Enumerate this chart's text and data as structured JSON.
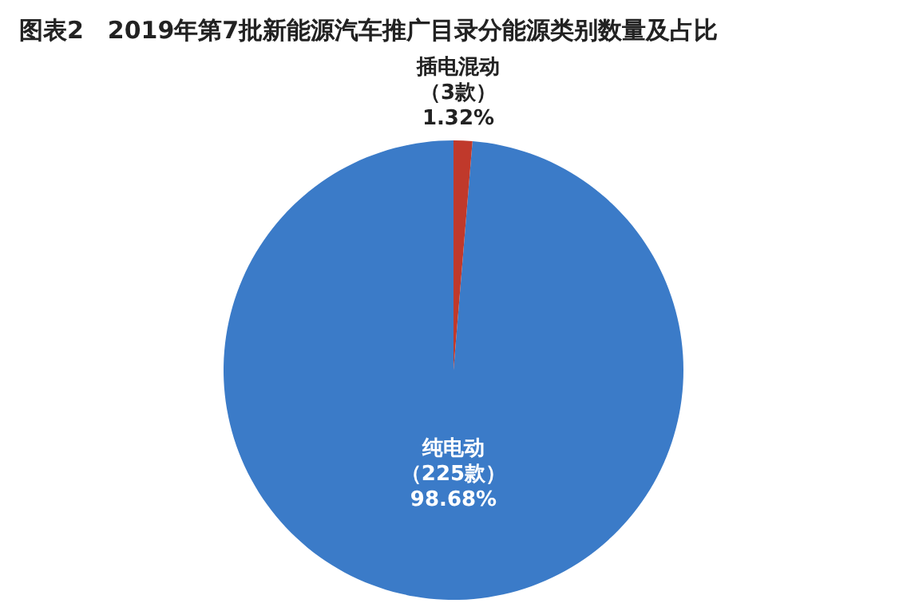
{
  "chart_data": {
    "type": "pie",
    "title": "图表2　2019年第7批新能源汽车推广目录分能源类别数量及占比",
    "categories": [
      "纯电动",
      "插电混动"
    ],
    "values": [
      225,
      3
    ],
    "colors": [
      "#3b7bc8",
      "#c0392b"
    ],
    "value_labels": [
      "（225款）\n98.68%",
      "（3款）\n1.32%"
    ]
  }
}
